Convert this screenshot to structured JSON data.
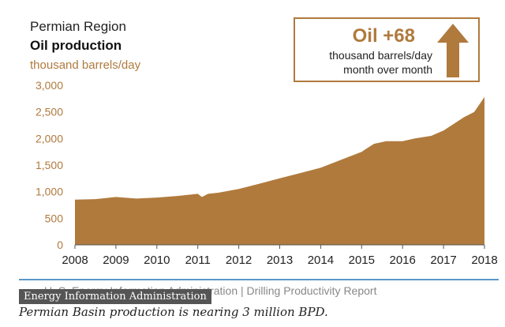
{
  "header": {
    "region": "Permian Region",
    "metric": "Oil production",
    "unit": "thousand barrels/day"
  },
  "callout": {
    "headline": "Oil +68",
    "line1": "thousand barrels/day",
    "line2": "month over month",
    "arrow_icon": "up-arrow-icon"
  },
  "footer": {
    "source_text": "U. S. Energy Information Administration  |  Drilling Productivity Report"
  },
  "caption": {
    "tag": "Energy Information Administration",
    "text": "Permian Basin production is nearing 3 million BPD."
  },
  "colors": {
    "accent": "#b07a3d",
    "fill": "#b07a3d",
    "rule": "#5b97c9"
  },
  "chart_data": {
    "type": "area",
    "title": "Oil production",
    "ylabel": "thousand barrels/day",
    "xlabel": "",
    "xlim": [
      2008,
      2018
    ],
    "ylim": [
      0,
      3000
    ],
    "yticks": [
      0,
      500,
      1000,
      1500,
      2000,
      2500,
      3000
    ],
    "ytick_labels": [
      "0",
      "500",
      "1,000",
      "1,500",
      "2,000",
      "2,500",
      "3,000"
    ],
    "xticks": [
      2008,
      2009,
      2010,
      2011,
      2012,
      2013,
      2014,
      2015,
      2016,
      2017,
      2018
    ],
    "xtick_labels": [
      "2008",
      "2009",
      "2010",
      "2011",
      "2012",
      "2013",
      "2014",
      "2015",
      "2016",
      "2017",
      "2018"
    ],
    "grid": false,
    "series": [
      {
        "x": [
          2008.0,
          2008.5,
          2009.0,
          2009.5,
          2010.0,
          2010.5,
          2011.0,
          2011.1,
          2011.25,
          2011.5,
          2012.0,
          2012.5,
          2013.0,
          2013.5,
          2014.0,
          2014.5,
          2015.0,
          2015.1,
          2015.3,
          2015.6,
          2016.0,
          2016.3,
          2016.7,
          2017.0,
          2017.3,
          2017.5,
          2017.75,
          2018.0
        ],
        "y": [
          850,
          860,
          900,
          870,
          890,
          920,
          960,
          900,
          960,
          980,
          1050,
          1150,
          1250,
          1350,
          1450,
          1600,
          1750,
          1800,
          1900,
          1950,
          1950,
          2000,
          2050,
          2150,
          2300,
          2400,
          2500,
          2780
        ]
      }
    ]
  }
}
